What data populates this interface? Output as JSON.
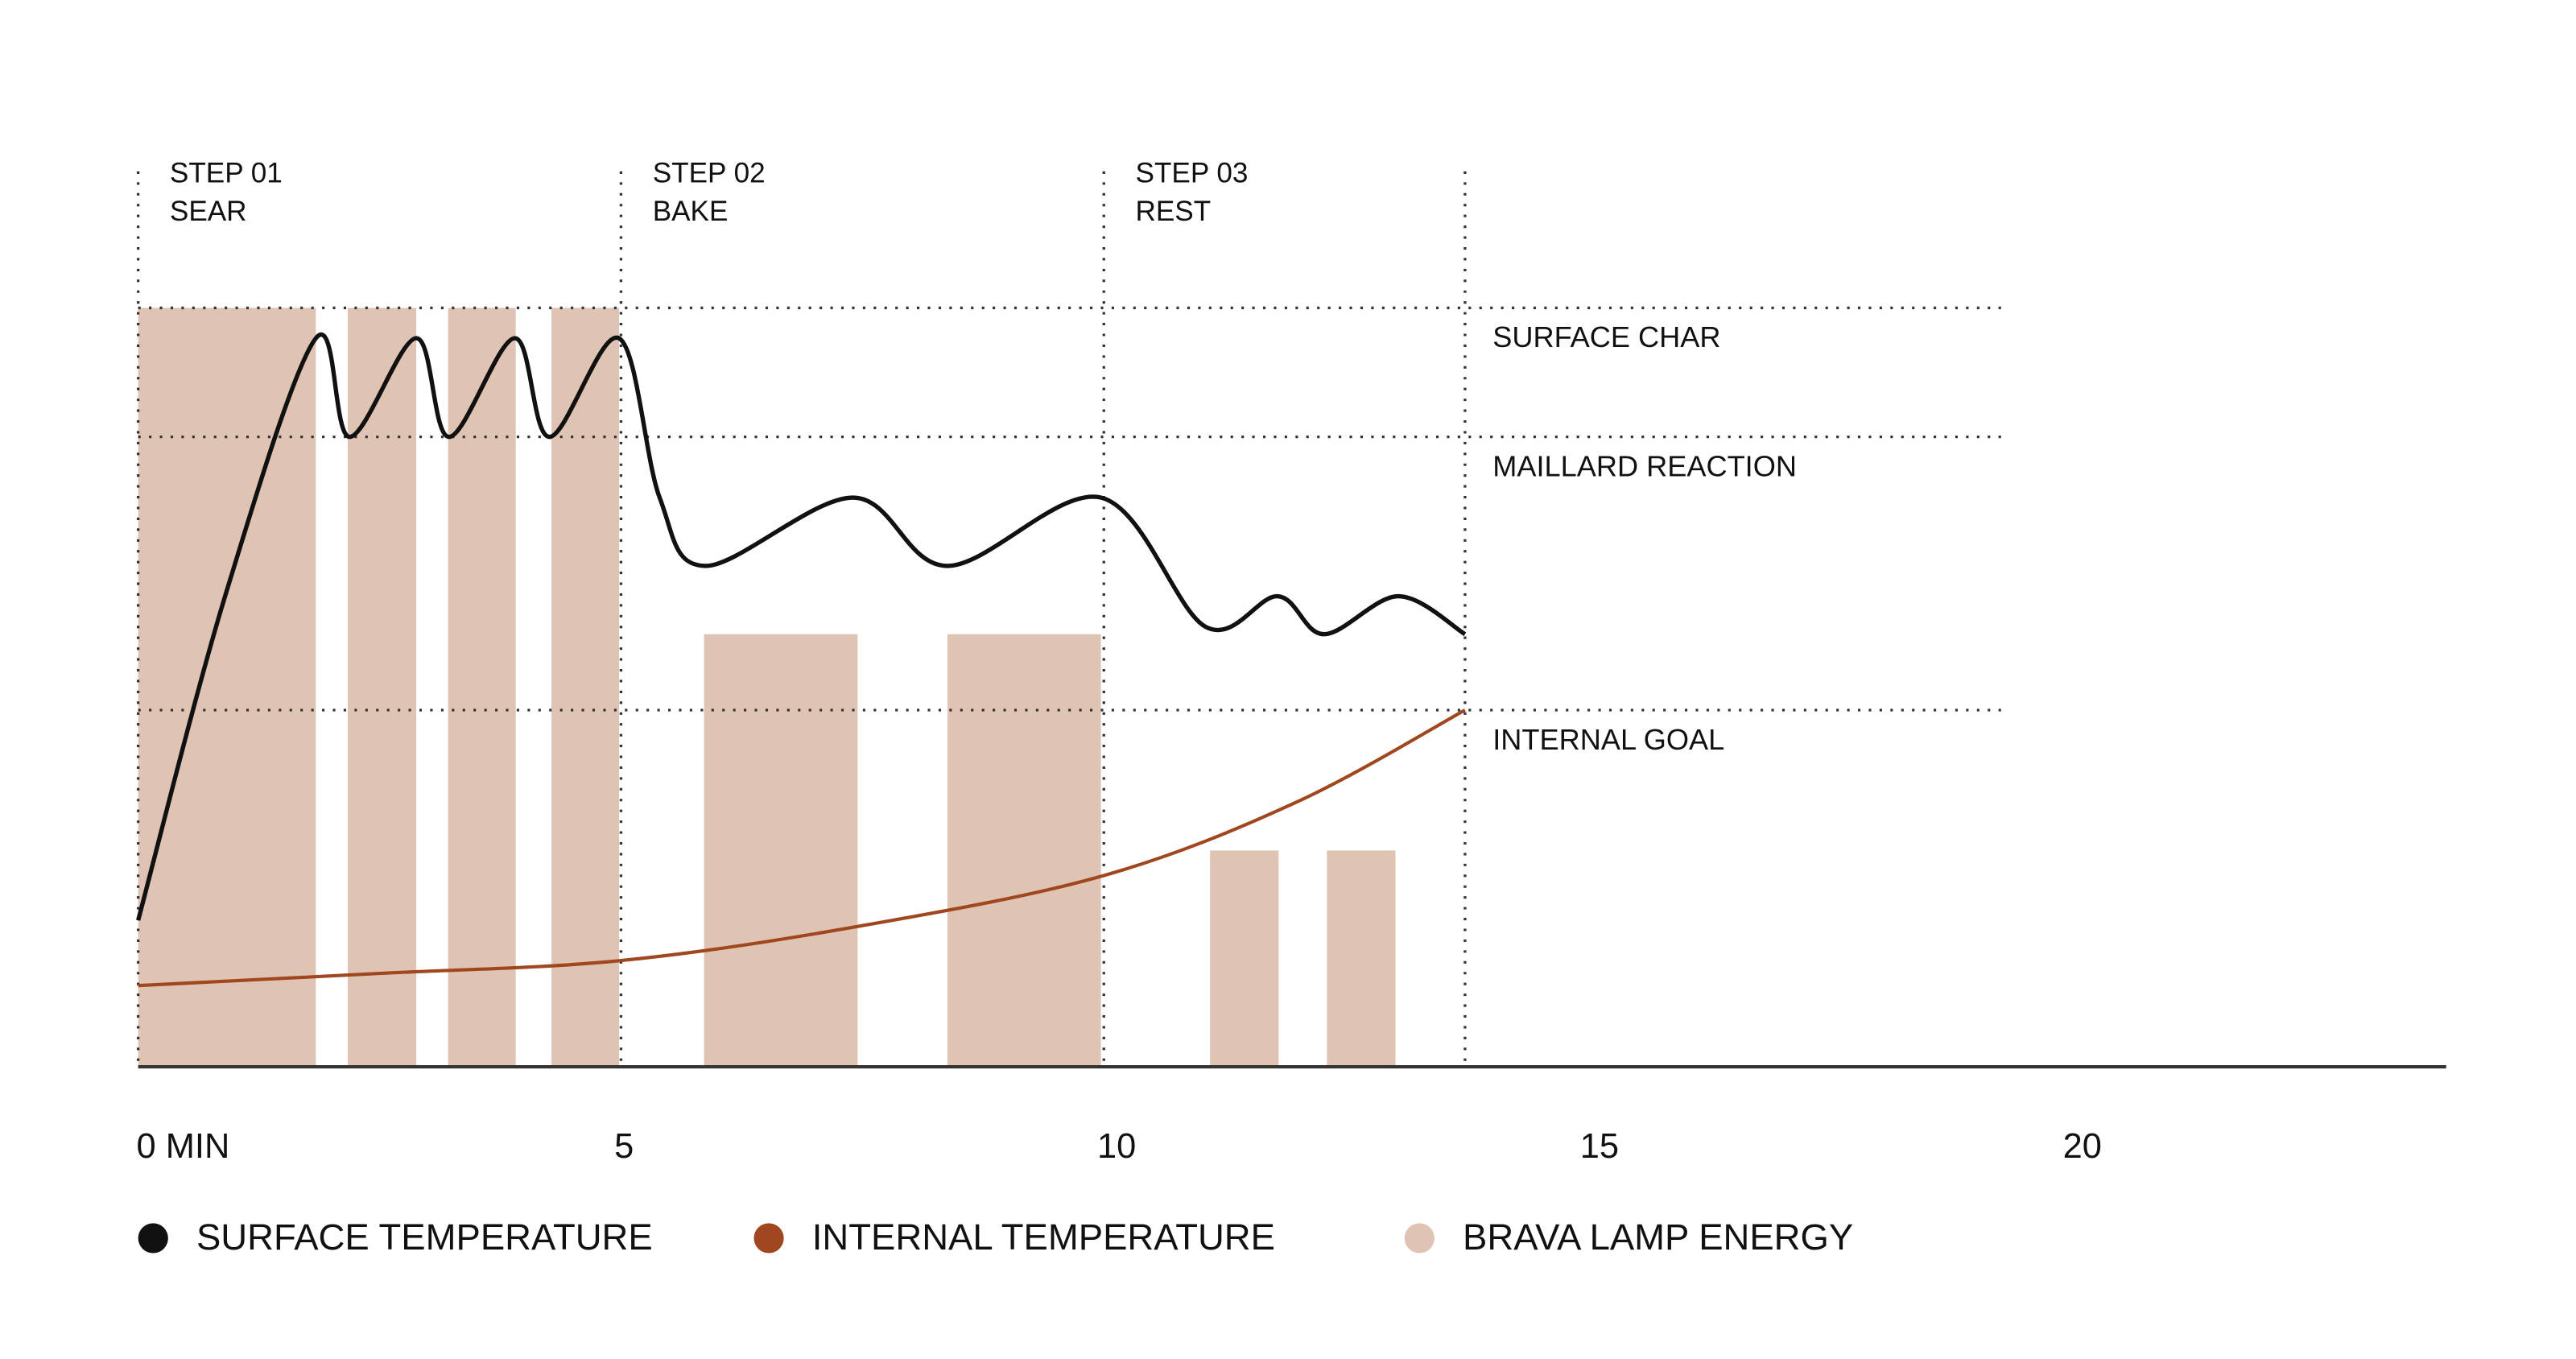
{
  "chart_data": {
    "type": "combo",
    "xlim": [
      0,
      23.9
    ],
    "xticks": [
      {
        "value": 0,
        "label": "0 MIN"
      },
      5,
      10,
      15,
      20
    ],
    "ylim": [
      0,
      100
    ],
    "phases": [
      {
        "step": "STEP 01",
        "name": "SEAR",
        "start": 0
      },
      {
        "step": "STEP 02",
        "name": "BAKE",
        "start": 5
      },
      {
        "step": "STEP 03",
        "name": "REST",
        "start": 10
      }
    ],
    "phase_end": 13.74,
    "reference_lines": [
      {
        "label": "SURFACE CHAR",
        "value": 100
      },
      {
        "label": "MAILLARD REACTION",
        "value": 83
      },
      {
        "label": "INTERNAL GOAL",
        "value": 47
      }
    ],
    "series": [
      {
        "name": "BRAVA LAMP ENERGY",
        "type": "bar",
        "color": "#dfc3b3",
        "start": [
          0,
          2.17,
          3.21,
          4.28,
          5.86,
          8.38,
          11.1,
          12.31
        ],
        "end": [
          1.84,
          2.88,
          3.91,
          4.98,
          7.45,
          9.97,
          11.81,
          13.02
        ],
        "values": [
          100,
          100,
          100,
          100,
          57,
          57,
          28.5,
          28.5
        ]
      },
      {
        "name": "INTERNAL TEMPERATURE",
        "type": "line",
        "color": "#a0471f",
        "width": 2,
        "x": [
          0,
          2.5,
          5,
          7.5,
          10,
          12,
          13.74
        ],
        "values": [
          10.7,
          12.3,
          14,
          18.6,
          25.2,
          34.9,
          47
        ]
      },
      {
        "name": "SURFACE TEMPERATURE",
        "type": "line",
        "color": "#111111",
        "width": 2.6,
        "x": [
          0,
          0.9,
          1.84,
          2.19,
          2.88,
          3.22,
          3.9,
          4.26,
          4.98,
          5.4,
          5.88,
          7.4,
          8.38,
          9.97,
          11.05,
          11.8,
          12.28,
          13.05,
          13.74
        ],
        "values": [
          19.3,
          62,
          96,
          83,
          96,
          83,
          96,
          83,
          96,
          75,
          66,
          75,
          66,
          75,
          58,
          62,
          57,
          62,
          57
        ]
      }
    ],
    "legend_order": [
      2,
      1,
      0
    ]
  }
}
